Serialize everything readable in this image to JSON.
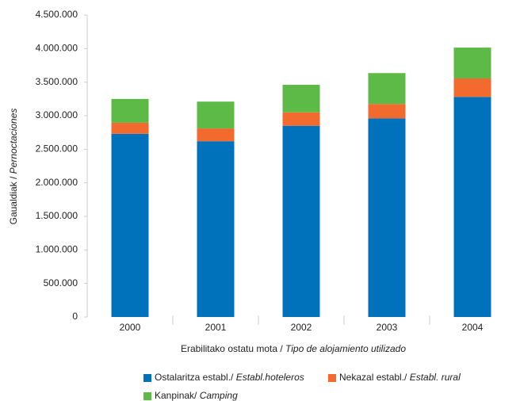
{
  "chart_data": {
    "type": "stacked_bar",
    "ylabel": "Gaualdiak / ",
    "ylabel_es": "Pernoctaciones",
    "xlabel": "Erabilitako ostatu mota / ",
    "xlabel_es": "Tipo de alojamiento utilizado",
    "categories": [
      "2000",
      "2001",
      "2002",
      "2003",
      "2004"
    ],
    "series": [
      {
        "name": "Ostalaritza establ./ ",
        "name_es": "Establ.hoteleros",
        "color": "#0072bc",
        "values": [
          2730000,
          2620000,
          2850000,
          2960000,
          3280000
        ]
      },
      {
        "name": "Nekazal establ./ ",
        "name_es": "Establ. rural",
        "color": "#f26a2e",
        "values": [
          165000,
          190000,
          200000,
          215000,
          275000
        ]
      },
      {
        "name": "Kanpinak/ ",
        "name_es": "Camping",
        "color": "#5dba47",
        "values": [
          355000,
          400000,
          410000,
          460000,
          460000
        ]
      }
    ],
    "ylim": [
      0,
      4500000
    ],
    "yticks": [
      0,
      {
        "value": 500000,
        "label": "500.000"
      },
      {
        "value": 1000000,
        "label": "1.000.000"
      },
      {
        "value": 1500000,
        "label": "1.500.000"
      },
      {
        "value": 2000000,
        "label": "2.000.000"
      },
      {
        "value": 2500000,
        "label": "2.500.000"
      },
      {
        "value": 3000000,
        "label": "3.000.000"
      },
      {
        "value": 3500000,
        "label": "3.500.000"
      },
      {
        "value": 4000000,
        "label": "4.000.000"
      },
      {
        "value": 4500000,
        "label": "4.500.000"
      }
    ],
    "grid": false
  }
}
